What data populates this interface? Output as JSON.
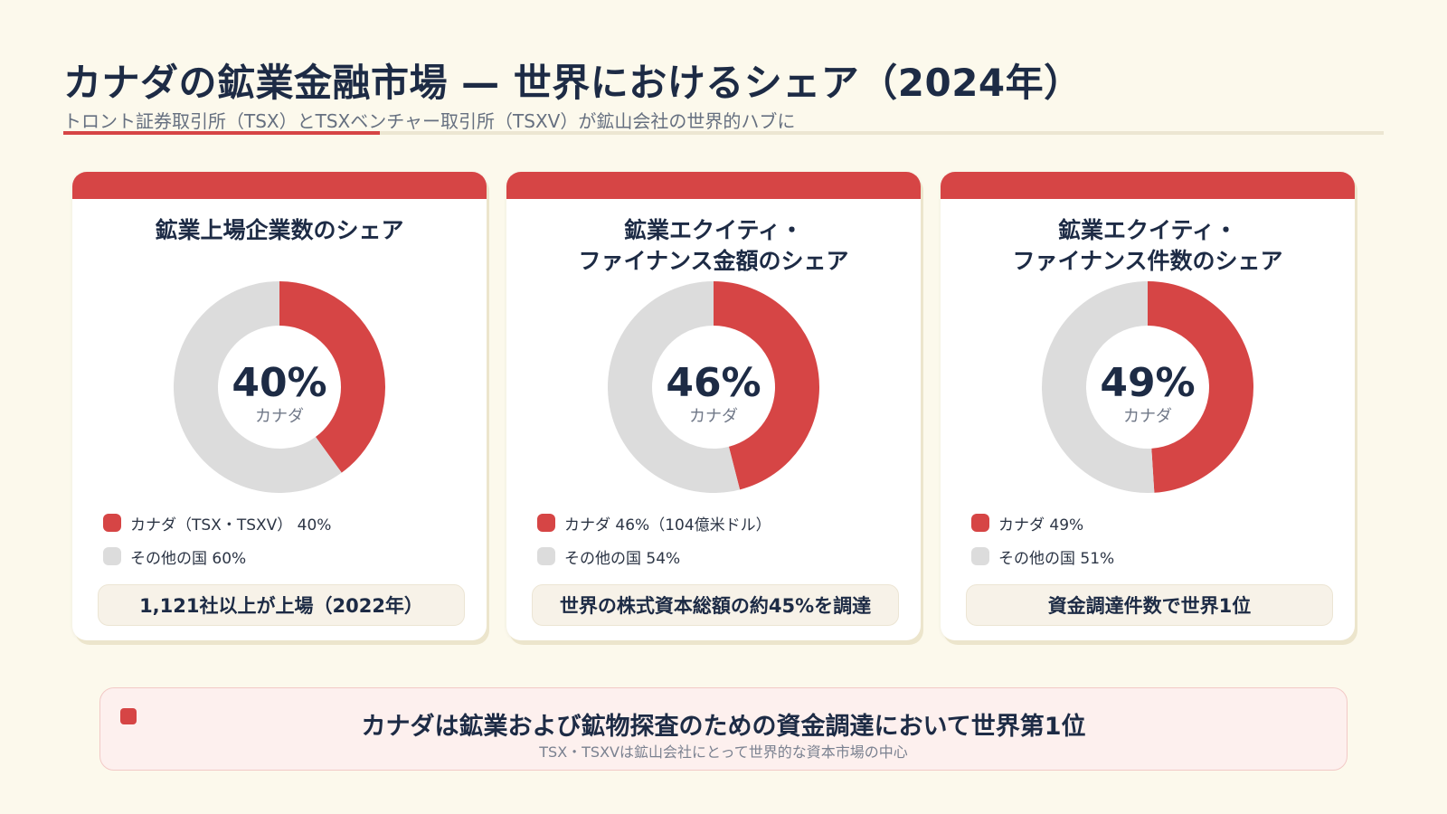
{
  "header": {
    "title": "カナダの鉱業金融市場 — 世界におけるシェア（2024年）",
    "subtitle": "トロント証券取引所（TSX）とTSXベンチャー取引所（TSXV）が鉱山会社の世界的ハブに"
  },
  "colors": {
    "canada": "#d64545",
    "other": "#dcdcdc",
    "background": "#fcf9ec",
    "text": "#1d2b45"
  },
  "chart_data": [
    {
      "type": "pie",
      "donut": true,
      "title": "鉱業上場企業数のシェア",
      "center_value": "40%",
      "center_label": "カナダ",
      "categories": [
        "カナダ（TSX・TSXV）",
        "その他の国"
      ],
      "values": [
        40,
        60
      ],
      "legend": [
        "カナダ（TSX・TSXV） 40%",
        "その他の国 60%"
      ],
      "note": "1,121社以上が上場（2022年）"
    },
    {
      "type": "pie",
      "donut": true,
      "title": "鉱業エクイティ・\nファイナンス金額のシェア",
      "center_value": "46%",
      "center_label": "カナダ",
      "categories": [
        "カナダ",
        "その他の国"
      ],
      "values": [
        46,
        54
      ],
      "legend": [
        "カナダ 46%（104億米ドル）",
        "その他の国 54%"
      ],
      "note": "世界の株式資本総額の約45%を調達"
    },
    {
      "type": "pie",
      "donut": true,
      "title": "鉱業エクイティ・\nファイナンス件数のシェア",
      "center_value": "49%",
      "center_label": "カナダ",
      "categories": [
        "カナダ",
        "その他の国"
      ],
      "values": [
        49,
        51
      ],
      "legend": [
        "カナダ 49%",
        "その他の国 51%"
      ],
      "note": "資金調達件数で世界1位"
    }
  ],
  "banner": {
    "main": "カナダは鉱業および鉱物探査のための資金調達において世界第1位",
    "sub": "TSX・TSXVは鉱山会社にとって世界的な資本市場の中心"
  }
}
